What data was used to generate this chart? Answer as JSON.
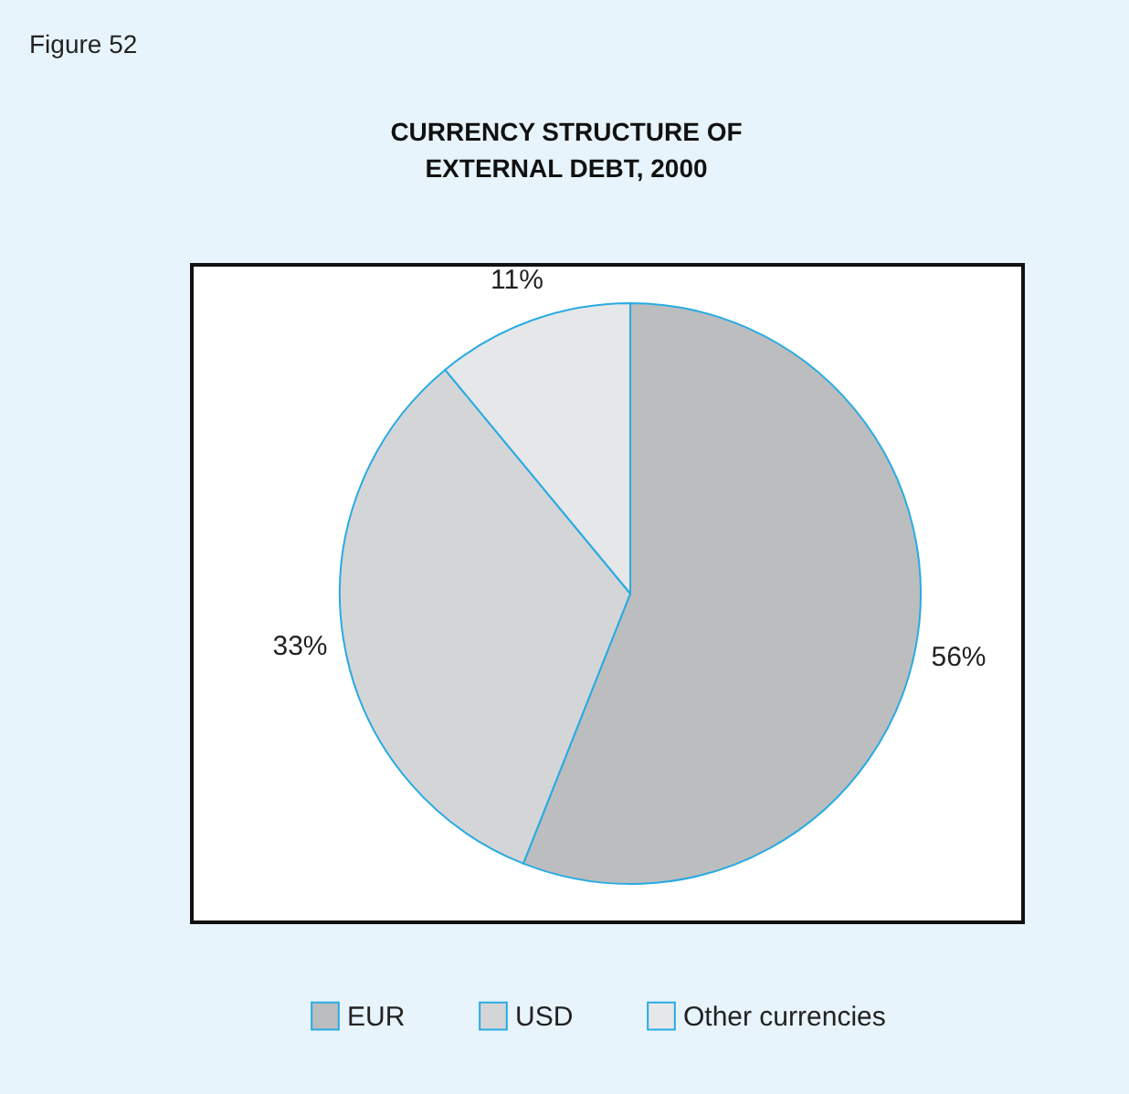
{
  "chart_data": {
    "type": "pie",
    "title": "CURRENCY STRUCTURE OF\nEXTERNAL DEBT, 2000",
    "categories": [
      "EUR",
      "USD",
      "Other currencies"
    ],
    "values": [
      56,
      33,
      11
    ],
    "value_labels": [
      "56%",
      "33%",
      "11%"
    ],
    "colors": [
      "#bcbdbf",
      "#d4d5d7",
      "#e6e7e8"
    ],
    "legend": "bottom",
    "annotations": [
      "Figure 52"
    ]
  }
}
